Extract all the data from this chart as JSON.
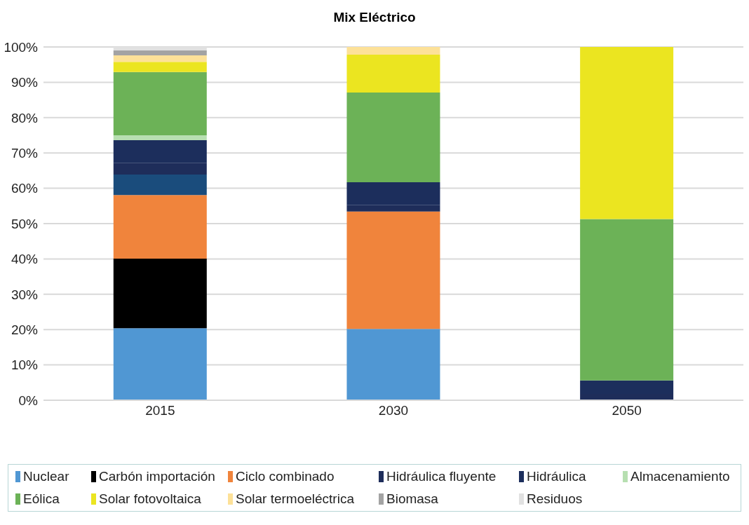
{
  "chart_data": {
    "type": "bar",
    "title": "Mix Eléctrico",
    "stacked": true,
    "categories": [
      "2015",
      "2030",
      "2050"
    ],
    "series": [
      {
        "name": "Nuclear",
        "color": "#5097d3",
        "values": [
          20.4,
          20.2,
          null
        ]
      },
      {
        "name": "Carbón importación",
        "color": "#000000",
        "values": [
          19.7,
          null,
          null
        ]
      },
      {
        "name": "Ciclo combinado",
        "color": "#f0843c",
        "values": [
          18.0,
          33.2,
          null
        ]
      },
      {
        "color": "#1a4c7c",
        "values": [
          5.8,
          null,
          null
        ]
      },
      {
        "name": "Hidráulica fluyente",
        "color": "#1e2d5a",
        "values": [
          3.2,
          1.8,
          1.8
        ]
      },
      {
        "name": "Hidráulica",
        "color": "#1c2e5c",
        "values": [
          6.5,
          6.5,
          3.8
        ]
      },
      {
        "name": "Almacenamiento",
        "color": "#b7dfb1",
        "values": [
          1.4,
          null,
          null
        ]
      },
      {
        "name": "Eólica",
        "color": "#6cb257",
        "values": [
          17.9,
          25.4,
          45.7
        ]
      },
      {
        "name": "Solar fotovoltaica",
        "color": "#ebe520",
        "values": [
          2.9,
          10.7,
          48.7
        ]
      },
      {
        "name": "Solar termoeléctrica",
        "color": "#fde198",
        "values": [
          1.8,
          2.2,
          null
        ]
      },
      {
        "name": "Biomasa",
        "color": "#a3a3a3",
        "values": [
          1.4,
          null,
          null
        ]
      },
      {
        "name": "Residuos",
        "color": "#e1e1e1",
        "values": [
          1.0,
          null,
          null
        ]
      }
    ],
    "ylim": [
      0,
      100
    ],
    "yticks": [
      {
        "value": 0,
        "label": "0%"
      },
      {
        "value": 10,
        "label": "10%"
      },
      {
        "value": 20,
        "label": "20%"
      },
      {
        "value": 30,
        "label": "30%"
      },
      {
        "value": 40,
        "label": "40%"
      },
      {
        "value": 50,
        "label": "50%"
      },
      {
        "value": 60,
        "label": "60%"
      },
      {
        "value": 70,
        "label": "70%"
      },
      {
        "value": 80,
        "label": "80%"
      },
      {
        "value": 90,
        "label": "90%"
      },
      {
        "value": 100,
        "label": "100%"
      }
    ],
    "grid": "y",
    "legend": "bottom"
  }
}
